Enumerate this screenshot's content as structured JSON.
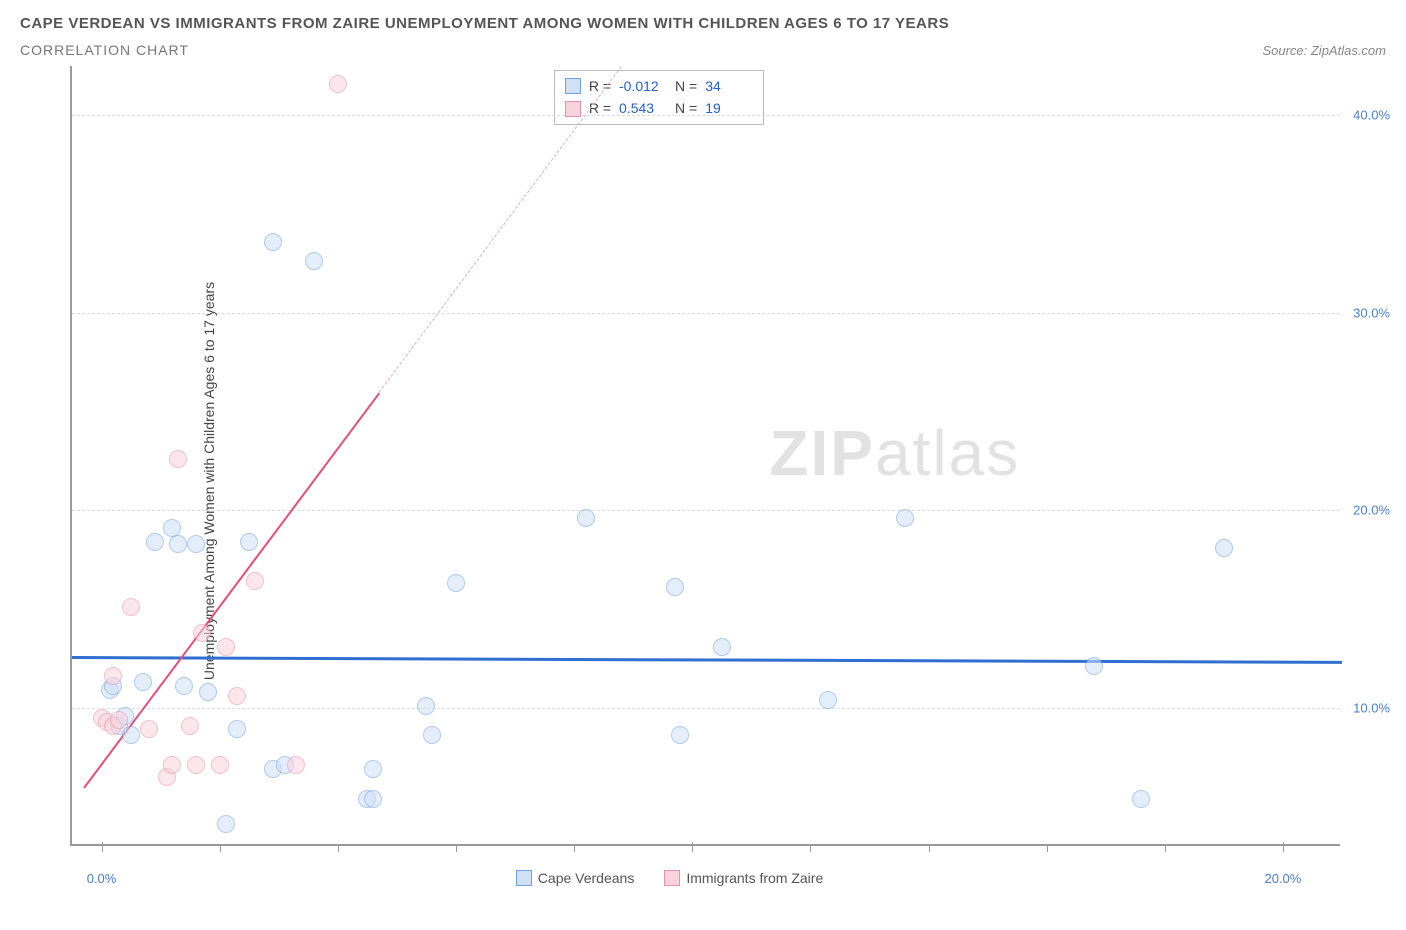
{
  "header": {
    "title": "CAPE VERDEAN VS IMMIGRANTS FROM ZAIRE UNEMPLOYMENT AMONG WOMEN WITH CHILDREN AGES 6 TO 17 YEARS",
    "subtitle": "CORRELATION CHART",
    "source_prefix": "Source: ",
    "source": "ZipAtlas.com"
  },
  "chart": {
    "type": "scatter",
    "ylabel": "Unemployment Among Women with Children Ages 6 to 17 years",
    "watermark_a": "ZIP",
    "watermark_b": "atlas",
    "xlim": [
      -0.5,
      21.0
    ],
    "ylim": [
      3.0,
      42.5
    ],
    "yticks": [
      {
        "v": 10.0,
        "label": "10.0%"
      },
      {
        "v": 20.0,
        "label": "20.0%"
      },
      {
        "v": 30.0,
        "label": "30.0%"
      },
      {
        "v": 40.0,
        "label": "40.0%"
      }
    ],
    "xticks": [
      {
        "v": 0.0,
        "label": "0.0%"
      },
      {
        "v": 10.0,
        "label": ""
      },
      {
        "v": 20.0,
        "label": "20.0%"
      }
    ],
    "xticks_minor": [
      2,
      4,
      6,
      8,
      12,
      14,
      16,
      18
    ],
    "background_color": "#ffffff",
    "grid_color": "#dddddd",
    "marker_radius": 9,
    "marker_stroke": 1.5,
    "series": [
      {
        "name": "Cape Verdeans",
        "fill": "#cfe0f7",
        "stroke": "#6fa0e0",
        "fill_opacity": 0.55,
        "R": "-0.012",
        "N": "34",
        "trend": {
          "x1": -0.5,
          "y1": 12.6,
          "x2": 21.0,
          "y2": 12.35,
          "color": "#2f6fd0",
          "width": 2.5,
          "dashed": false
        },
        "points": [
          [
            0.15,
            10.8
          ],
          [
            0.2,
            11.0
          ],
          [
            0.3,
            9.0
          ],
          [
            0.4,
            9.5
          ],
          [
            0.5,
            8.5
          ],
          [
            0.7,
            11.2
          ],
          [
            0.9,
            18.3
          ],
          [
            1.2,
            19.0
          ],
          [
            1.3,
            18.2
          ],
          [
            1.6,
            18.2
          ],
          [
            1.4,
            11.0
          ],
          [
            1.8,
            10.7
          ],
          [
            2.1,
            4.0
          ],
          [
            2.3,
            8.8
          ],
          [
            2.5,
            18.3
          ],
          [
            2.9,
            6.8
          ],
          [
            3.1,
            7.0
          ],
          [
            2.9,
            33.5
          ],
          [
            3.6,
            32.5
          ],
          [
            4.5,
            5.3
          ],
          [
            4.6,
            5.3
          ],
          [
            4.6,
            6.8
          ],
          [
            5.5,
            10.0
          ],
          [
            5.6,
            8.5
          ],
          [
            6.0,
            16.2
          ],
          [
            8.2,
            19.5
          ],
          [
            9.7,
            16.0
          ],
          [
            9.8,
            8.5
          ],
          [
            10.5,
            13.0
          ],
          [
            12.3,
            10.3
          ],
          [
            13.6,
            19.5
          ],
          [
            16.8,
            12.0
          ],
          [
            17.6,
            5.3
          ],
          [
            19.0,
            18.0
          ]
        ]
      },
      {
        "name": "Immigrants from Zaire",
        "fill": "#f8d3de",
        "stroke": "#e58fab",
        "fill_opacity": 0.55,
        "R": "0.543",
        "N": "19",
        "trend": {
          "x1": -0.3,
          "y1": 6.0,
          "x2": 4.7,
          "y2": 26.0,
          "color": "#e84c7a",
          "width": 2,
          "dashed": false
        },
        "trend_ext": {
          "x1": 4.7,
          "y1": 26.0,
          "x2": 8.8,
          "y2": 42.5,
          "color": "#e9a9bd",
          "width": 1.5,
          "dashed": true
        },
        "points": [
          [
            0.0,
            9.4
          ],
          [
            0.1,
            9.2
          ],
          [
            0.2,
            9.0
          ],
          [
            0.3,
            9.3
          ],
          [
            0.2,
            11.5
          ],
          [
            0.5,
            15.0
          ],
          [
            0.8,
            8.8
          ],
          [
            1.1,
            6.4
          ],
          [
            1.2,
            7.0
          ],
          [
            1.3,
            22.5
          ],
          [
            1.5,
            9.0
          ],
          [
            1.6,
            7.0
          ],
          [
            1.7,
            13.7
          ],
          [
            2.0,
            7.0
          ],
          [
            2.1,
            13.0
          ],
          [
            2.3,
            10.5
          ],
          [
            2.6,
            16.3
          ],
          [
            3.3,
            7.0
          ],
          [
            4.0,
            41.5
          ]
        ]
      }
    ],
    "stats_labels": {
      "R": "R =",
      "N": "N ="
    },
    "legend_labels": [
      "Cape Verdeans",
      "Immigrants from Zaire"
    ]
  }
}
